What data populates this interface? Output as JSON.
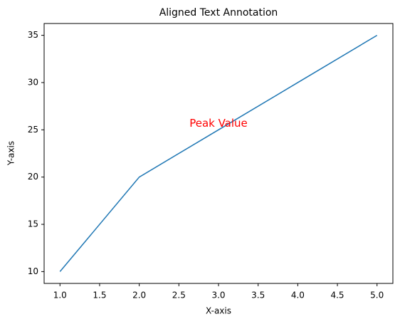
{
  "chart_data": {
    "type": "line",
    "title": "Aligned Text Annotation",
    "x_label": "X-axis",
    "y_label": "Y-axis",
    "x": [
      1,
      2,
      3,
      4,
      5
    ],
    "series": [
      {
        "color": "#1f77b4",
        "values": [
          10,
          20,
          25,
          30,
          35
        ]
      }
    ],
    "xlim": [
      0.8,
      5.2
    ],
    "xticks": [
      {
        "value": 1,
        "label": "1.0"
      },
      {
        "value": 1.5,
        "label": "1.5"
      },
      {
        "value": 2,
        "label": "2.0"
      },
      {
        "value": 2.5,
        "label": "2.5"
      },
      {
        "value": 3,
        "label": "3.0"
      },
      {
        "value": 3.5,
        "label": "3.5"
      },
      {
        "value": 4,
        "label": "4.0"
      },
      {
        "value": 4.5,
        "label": "4.5"
      },
      {
        "value": 5,
        "label": "5.0"
      }
    ],
    "ylim": [
      8.75,
      36.25
    ],
    "yticks": [
      10,
      15,
      20,
      25,
      30,
      35
    ],
    "annotations": [
      {
        "text": "Peak Value",
        "x": 3,
        "y": 25,
        "color": "red"
      }
    ]
  }
}
